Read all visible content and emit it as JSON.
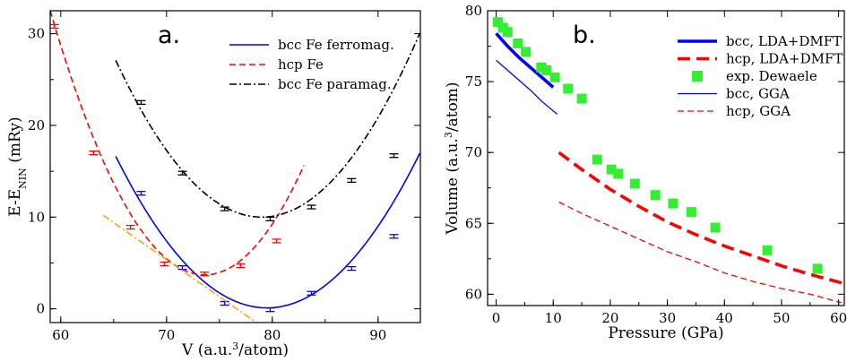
{
  "chart_data": [
    {
      "type": "line",
      "panel_label": "a.",
      "xlabel": "V (a.u.³/atom)",
      "xlabel_parts": {
        "pre": "V (a.u.",
        "sup": "3",
        "post": "/atom)"
      },
      "ylabel": "E-E_NIN (mRy)",
      "ylabel_parts": {
        "pre": "E-E",
        "sub": "NIN",
        "post": " (mRy)"
      },
      "xlim": [
        59,
        94
      ],
      "ylim": [
        -1.5,
        32.5
      ],
      "xticks": [
        60,
        70,
        80,
        90
      ],
      "yticks": [
        0,
        10,
        20,
        30
      ],
      "legend_position": "top-right",
      "series": [
        {
          "name": "bcc Fe ferromag.",
          "color": "#0000ff",
          "style": "solid",
          "in_legend": true,
          "curve": {
            "fn": "parabola",
            "x0": 79.5,
            "y0": 0.1,
            "a": 0.0808,
            "xmin": 65.2,
            "xmax": 94
          },
          "points": [
            [
              67.6,
              12.6
            ],
            [
              71.5,
              4.5
            ],
            [
              75.5,
              0.6
            ],
            [
              79.8,
              -0.1
            ],
            [
              83.7,
              1.7
            ],
            [
              87.5,
              4.4
            ],
            [
              91.5,
              7.9
            ]
          ]
        },
        {
          "name": "hcp Fe",
          "color": "#ff0000",
          "style": "dashed",
          "in_legend": true,
          "curve": {
            "fn": "parabola",
            "x0": 73.6,
            "y0": 3.7,
            "a": 0.1352,
            "xmin": 59,
            "xmax": 83
          },
          "points": [
            [
              59.4,
              30.8
            ],
            [
              63.1,
              17.0
            ],
            [
              66.6,
              8.9
            ],
            [
              69.8,
              4.9
            ],
            [
              73.6,
              3.8
            ],
            [
              77.0,
              4.7
            ],
            [
              80.4,
              7.4
            ]
          ]
        },
        {
          "name": "bcc Fe paramag.",
          "color": "#000000",
          "style": "dashdot",
          "in_legend": true,
          "curve": {
            "fn": "parabola",
            "x0": 79.0,
            "y0": 10.0,
            "a": 0.0898,
            "xmin": 65.2,
            "xmax": 94
          },
          "points": [
            [
              67.6,
              22.5
            ],
            [
              71.5,
              14.8
            ],
            [
              75.5,
              10.9
            ],
            [
              79.8,
              9.8
            ],
            [
              83.7,
              11.1
            ],
            [
              87.5,
              14.0
            ],
            [
              91.5,
              16.7
            ]
          ]
        },
        {
          "name": "",
          "color": "#ffa500",
          "style": "dashdot",
          "in_legend": false,
          "curve": {
            "fn": "line",
            "points": [
              [
                64.0,
                10.2
              ],
              [
                78.5,
                -1.5
              ]
            ]
          },
          "points": []
        }
      ]
    },
    {
      "type": "line",
      "panel_label": "b.",
      "xlabel": "Pressure (GPa)",
      "ylabel": "Volume (a.u.³/atom)",
      "ylabel_parts": {
        "pre": "Volume (a.u.",
        "sup": "3",
        "post": "/atom)"
      },
      "xlim": [
        -1.5,
        61
      ],
      "ylim": [
        59.2,
        80.0
      ],
      "xticks": [
        0,
        10,
        20,
        30,
        40,
        50,
        60
      ],
      "yticks": [
        60,
        65,
        70,
        75,
        80
      ],
      "legend_position": "top-right",
      "series": [
        {
          "name": "bcc, LDA+DMFT",
          "color": "#0000ff",
          "style": "thick-solid",
          "in_legend": true,
          "x": [
            0,
            2,
            4,
            6,
            8,
            10
          ],
          "y": [
            78.4,
            77.5,
            76.7,
            76.0,
            75.3,
            74.6
          ]
        },
        {
          "name": "hcp, LDA+DMFT",
          "color": "#ff0000",
          "style": "thick-dashed",
          "in_legend": true,
          "x": [
            11,
            15,
            20,
            25,
            30,
            35,
            40,
            45,
            50,
            55,
            60.5
          ],
          "y": [
            70.0,
            68.8,
            67.4,
            66.2,
            65.1,
            64.2,
            63.4,
            62.7,
            62.0,
            61.4,
            60.8
          ]
        },
        {
          "name": "exp. Dewaele",
          "color": "#33ee33",
          "style": "squares",
          "in_legend": true,
          "x": [
            0.3,
            1.2,
            2.0,
            3.8,
            5.2,
            7.9,
            8.8,
            10.3,
            12.6,
            15.0,
            17.7,
            20.2,
            21.4,
            24.3,
            27.9,
            31.0,
            34.2,
            38.4,
            47.5,
            56.3
          ],
          "y": [
            79.2,
            78.8,
            78.5,
            77.7,
            77.1,
            76.0,
            75.8,
            75.3,
            74.5,
            73.8,
            69.5,
            68.8,
            68.5,
            67.8,
            67.0,
            66.4,
            65.8,
            64.7,
            63.1,
            61.8
          ]
        },
        {
          "name": "bcc, GGA",
          "color": "#0000ff",
          "style": "thin-solid",
          "in_legend": true,
          "x": [
            0,
            2,
            4,
            6,
            8,
            10.7
          ],
          "y": [
            76.5,
            75.8,
            75.1,
            74.4,
            73.6,
            72.7
          ]
        },
        {
          "name": "hcp, GGA",
          "color": "#ff0000",
          "style": "thin-dashed",
          "in_legend": true,
          "x": [
            11,
            15,
            20,
            25,
            30,
            35,
            40,
            45,
            50,
            55,
            60.5
          ],
          "y": [
            66.5,
            65.7,
            64.8,
            63.9,
            63.0,
            62.3,
            61.5,
            60.9,
            60.4,
            60.0,
            59.4
          ]
        }
      ]
    }
  ]
}
